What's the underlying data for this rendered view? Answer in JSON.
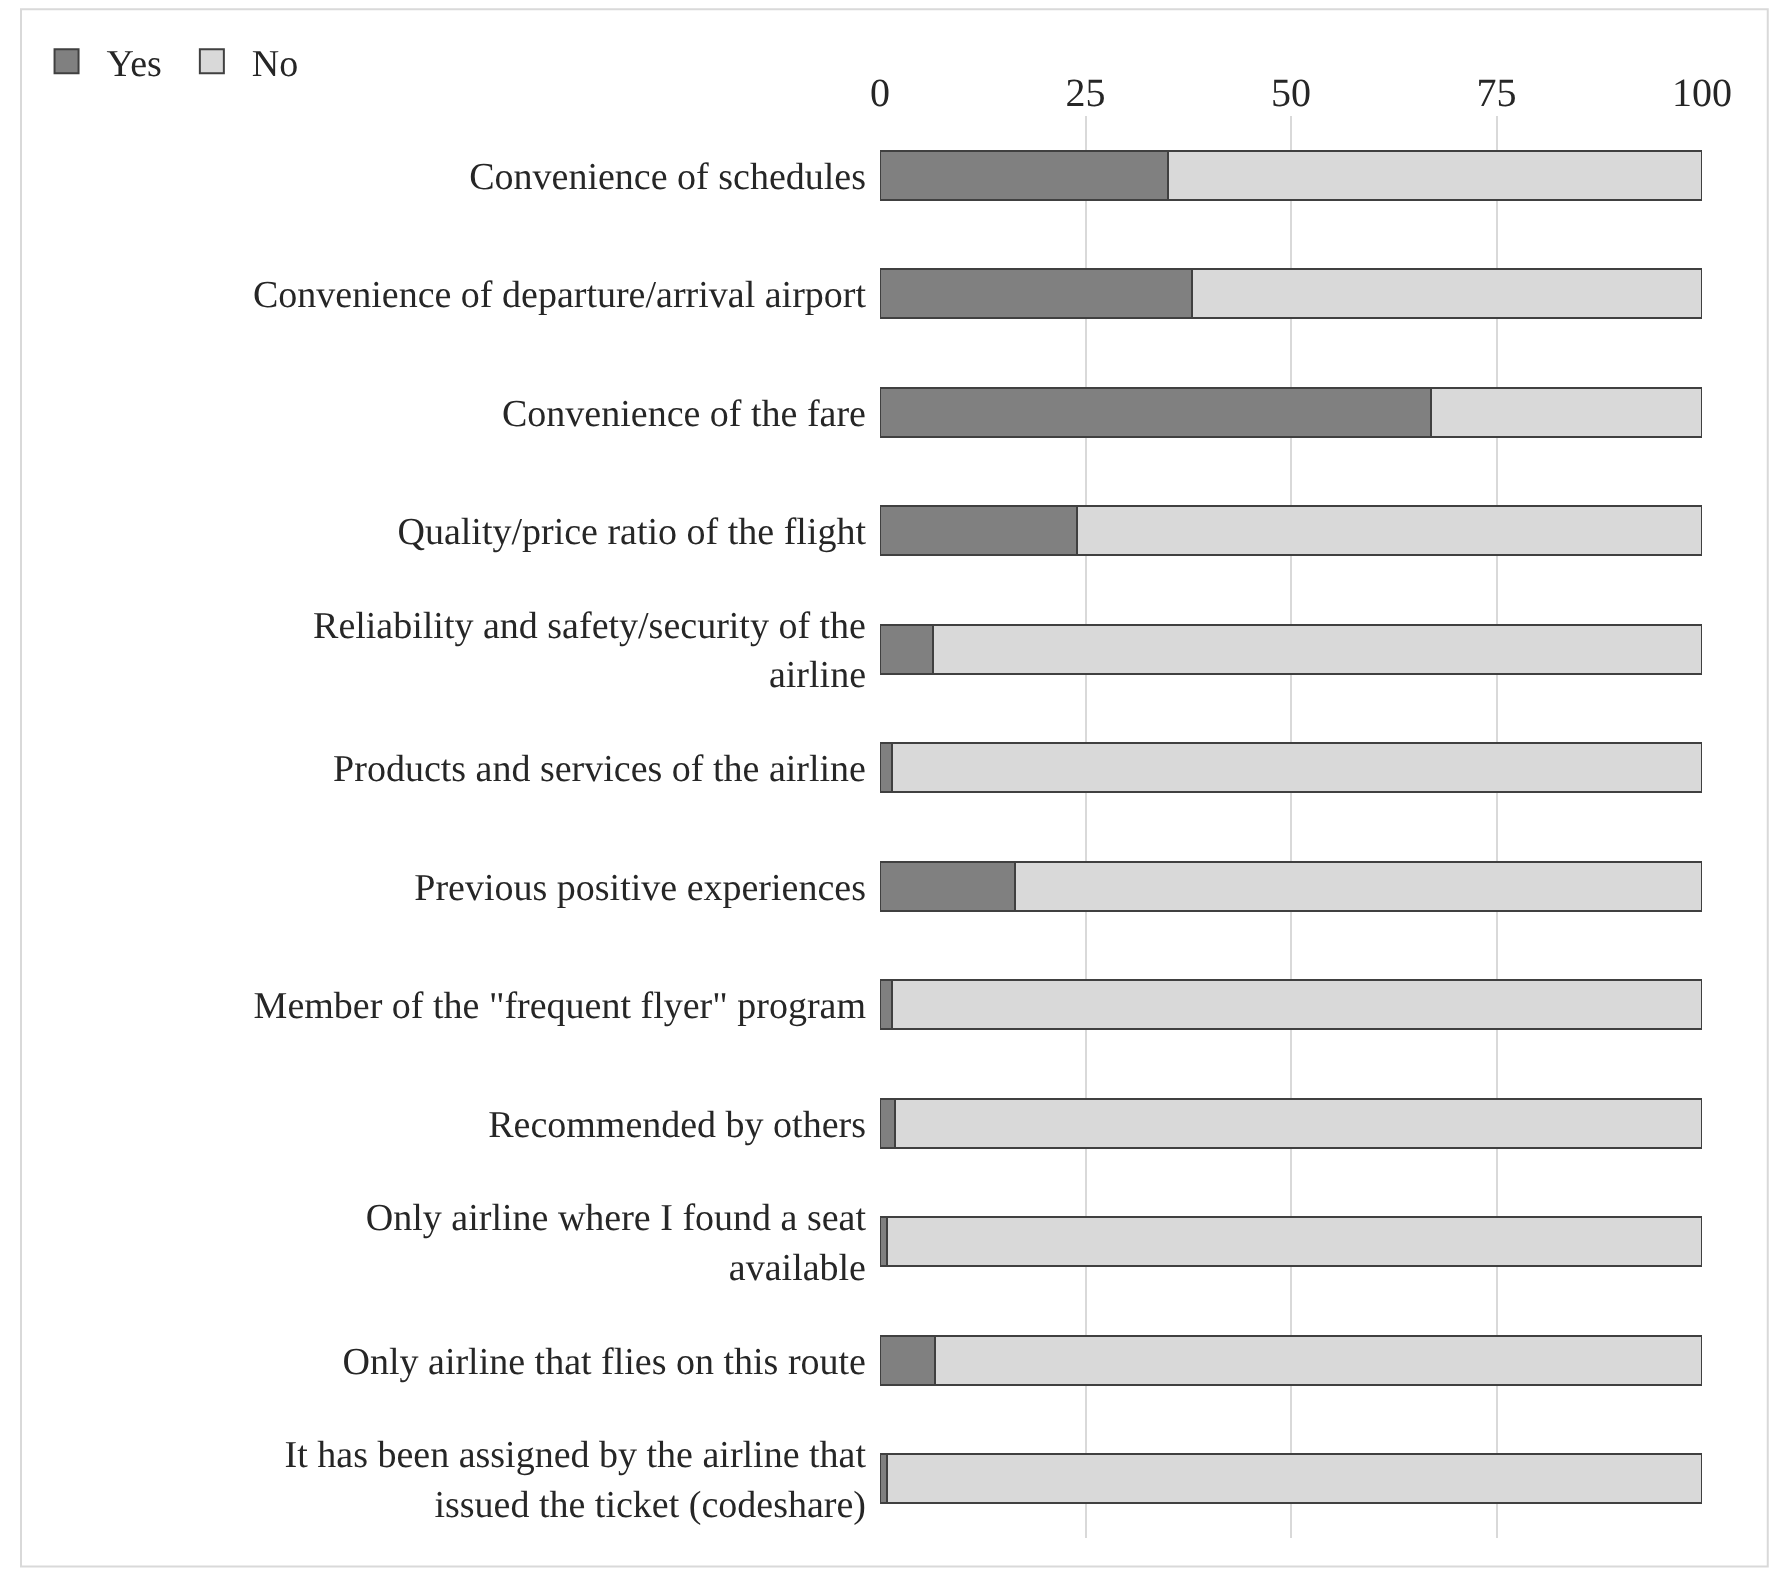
{
  "chart_data": {
    "type": "bar",
    "orientation": "horizontal",
    "stacked": true,
    "categories": [
      "Convenience of schedules",
      "Convenience of departure/arrival airport",
      "Convenience of the fare",
      "Quality/price ratio of the flight",
      "Reliability and safety/security of the airline",
      "Products and services of the airline",
      "Previous positive experiences",
      "Member of the \"frequent flyer\" program",
      "Recommended by others",
      "Only airline where I found a seat available",
      "Only airline that flies on this route",
      "It has been assigned by the airline that issued the ticket (codeshare)"
    ],
    "series": [
      {
        "name": "Yes",
        "color": "#808080",
        "values": [
          35,
          38,
          67,
          24,
          6.4,
          1.5,
          16.4,
          1.5,
          1.8,
          0.9,
          6.7,
          0.9
        ]
      },
      {
        "name": "No",
        "color": "#d9d9d9",
        "values": [
          65,
          62,
          33,
          76,
          93.6,
          98.5,
          83.6,
          98.5,
          98.2,
          99.1,
          93.3,
          99.1
        ]
      }
    ],
    "xlim": [
      0,
      100
    ],
    "xticks": [
      0,
      25,
      50,
      75,
      100
    ],
    "grid": "x",
    "legend": "top left"
  }
}
